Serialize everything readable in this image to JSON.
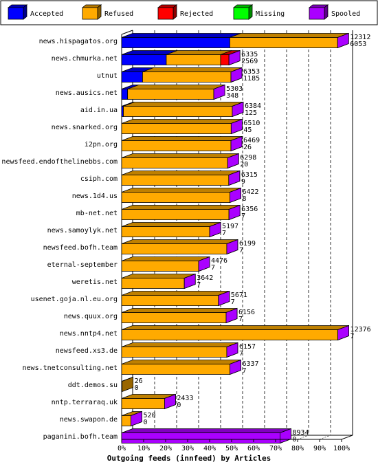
{
  "colors": {
    "background": "#ffffff",
    "accepted": "#0000ff",
    "refused": "#ffaa00",
    "rejected": "#ff0000",
    "missing": "#00ff00",
    "spooled": "#aa00ff"
  },
  "chart_data": {
    "type": "bar",
    "orientation": "horizontal",
    "stacked": true,
    "three_d": true,
    "xlabel": "Outgoing feeds (innfeed) by Articles",
    "x_ticks": [
      "0%",
      "10%",
      "20%",
      "30%",
      "40%",
      "50%",
      "60%",
      "70%",
      "80%",
      "90%",
      "100%"
    ],
    "xlim": [
      0,
      100
    ],
    "grid": "vertical dashed",
    "legend_position": "top",
    "legend": [
      {
        "name": "Accepted",
        "color_key": "accepted"
      },
      {
        "name": "Refused",
        "color_key": "refused"
      },
      {
        "name": "Rejected",
        "color_key": "rejected"
      },
      {
        "name": "Missing",
        "color_key": "missing"
      },
      {
        "name": "Spooled",
        "color_key": "spooled"
      }
    ],
    "categories": [
      "news.hispagatos.org",
      "news.chmurka.net",
      "utnut",
      "news.ausics.net",
      "aid.in.ua",
      "news.snarked.org",
      "i2pn.org",
      "newsfeed.endofthelinebbs.com",
      "csiph.com",
      "news.1d4.us",
      "mb-net.net",
      "news.samoylyk.net",
      "newsfeed.bofh.team",
      "eternal-september",
      "weretis.net",
      "usenet.goja.nl.eu.org",
      "news.quux.org",
      "news.nntp4.net",
      "newsfeed.xs3.de",
      "news.tnetconsulting.net",
      "ddt.demos.su",
      "nntp.terraraq.uk",
      "news.swapon.de",
      "paganini.bofh.team"
    ],
    "offered_labels": [
      "12312",
      "6335",
      "6353",
      "5303",
      "6384",
      "6510",
      "6469",
      "6298",
      "6315",
      "6422",
      "6356",
      "5197",
      "6199",
      "4476",
      "3642",
      "5671",
      "6156",
      "12376",
      "6157",
      "6337",
      "26",
      "2433",
      "520",
      "8934"
    ],
    "accepted_labels": [
      "6053",
      "2569",
      "1185",
      "348",
      "125",
      "45",
      "26",
      "20",
      "9",
      "8",
      "7",
      "7",
      "7",
      "7",
      "7",
      "7",
      "7",
      "7",
      "7",
      "7",
      "0",
      "0",
      "0",
      "0"
    ],
    "series": [
      {
        "name": "Accepted",
        "color_key": "accepted",
        "values": [
          49.2,
          20.3,
          9.5,
          2.7,
          0.8,
          0,
          0,
          0,
          0,
          0,
          0,
          0,
          0,
          0,
          0,
          0,
          0,
          0,
          0,
          0,
          0,
          0,
          0,
          0
        ]
      },
      {
        "name": "Refused",
        "color_key": "refused",
        "values": [
          49.0,
          24.7,
          40.2,
          39.2,
          49.5,
          49.8,
          49.7,
          48.2,
          48.7,
          49.2,
          48.8,
          40.0,
          47.8,
          35.0,
          28.5,
          44.0,
          47.5,
          98.3,
          47.8,
          49.2,
          0.2,
          19.5,
          4.2,
          0
        ]
      },
      {
        "name": "Rejected",
        "color_key": "rejected",
        "values": [
          0,
          3.8,
          0,
          0,
          0,
          0,
          0,
          0,
          0,
          0,
          0,
          0,
          0,
          0,
          0,
          0,
          0,
          0,
          0,
          0,
          0,
          0,
          0,
          0
        ]
      },
      {
        "name": "Missing",
        "color_key": "missing",
        "values": [
          0,
          0,
          0,
          0,
          0,
          0,
          0,
          0,
          0,
          0,
          0,
          0,
          0,
          0,
          0,
          0,
          0,
          0,
          0,
          0,
          0,
          0,
          0,
          0
        ]
      },
      {
        "name": "Spooled",
        "color_key": "spooled",
        "values": [
          0,
          0,
          0,
          0,
          0,
          0,
          0,
          0,
          0,
          0,
          0,
          0,
          0,
          0,
          0,
          0,
          0,
          0,
          0,
          0,
          0,
          0,
          0,
          72.0
        ]
      }
    ]
  }
}
